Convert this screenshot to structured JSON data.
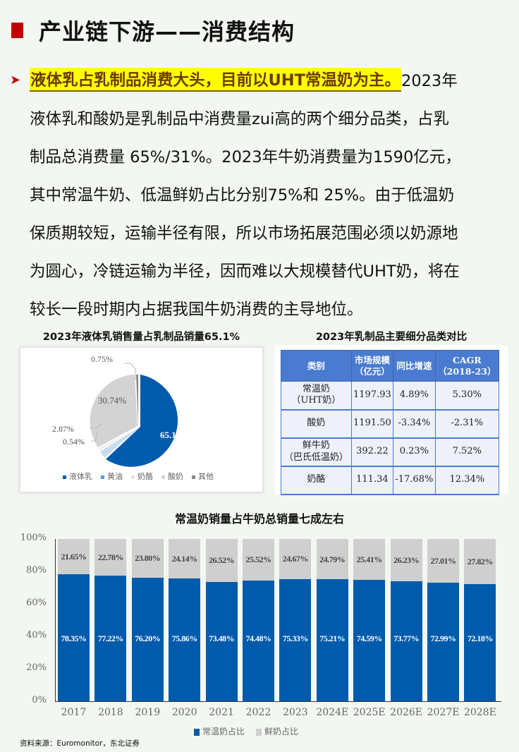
{
  "header": {
    "title": "产业链下游——消费结构",
    "accent_color": "#c00000"
  },
  "paragraph": {
    "highlight": "液体乳占乳制品消费大头，目前以UHT常温奶为主。",
    "lines": [
      "2023年",
      "液体乳和酸奶是乳制品中消费量zui高的两个细分品类，占乳",
      "制品总消费量 65%/31%。2023年牛奶消费量为1590亿元，",
      "其中常温牛奶、低温鲜奶占比分别75%和 25%。由于低温奶",
      "保质期较短，运输半径有限，所以市场拓展范围必须以奶源地",
      "为圆心，冷链运输为半径，因而难以大规模替代UHT奶，将在",
      "较长一段时期内占据我国牛奶消费的主导地位。"
    ]
  },
  "pie": {
    "title": "2023年液体乳销售量占乳制品销量65.1%",
    "labels": {
      "liquid": "65.10%",
      "yogurt": "30.74%",
      "other": "0.75%",
      "butter": "2.87%",
      "cheese": "0.54%"
    },
    "legend": [
      "液体乳",
      "黄油",
      "奶酪",
      "酸奶",
      "其他"
    ]
  },
  "table": {
    "title": "2023年乳制品主要细分品类对比",
    "headers": [
      [
        "类别",
        ""
      ],
      [
        "市场规模",
        "（亿元）"
      ],
      [
        "同比增速",
        ""
      ],
      [
        "CAGR",
        "（2018-23）"
      ]
    ],
    "rows": [
      {
        "cat1": "常温奶",
        "cat2": "（UHT奶）",
        "size": "1197.93",
        "yoy": "4.89%",
        "cagr": "5.30%"
      },
      {
        "cat1": "酸奶",
        "cat2": "",
        "size": "1191.50",
        "yoy": "-3.34%",
        "cagr": "-2.31%"
      },
      {
        "cat1": "鲜牛奶",
        "cat2": "（巴氏低温奶）",
        "size": "392.22",
        "yoy": "0.23%",
        "cagr": "7.52%"
      },
      {
        "cat1": "奶酪",
        "cat2": "",
        "size": "111.34",
        "yoy": "-17.68%",
        "cagr": "12.34%"
      }
    ]
  },
  "bar": {
    "title": "常温奶销量占牛奶总销量七成左右",
    "legend": [
      "常温奶占比",
      "鲜奶占比"
    ],
    "y_ticks": [
      "100%",
      "80%",
      "60%",
      "40%",
      "20%",
      "0%"
    ]
  },
  "chart_data": [
    {
      "type": "pie",
      "title": "2023年液体乳销售量占乳制品销量65.1%",
      "categories": [
        "液体乳",
        "黄油",
        "奶酪",
        "酸奶",
        "其他"
      ],
      "values": [
        65.1,
        2.87,
        0.54,
        30.74,
        0.75
      ],
      "legend_position": "bottom"
    },
    {
      "type": "bar",
      "stacked": true,
      "title": "常温奶销量占牛奶总销量七成左右",
      "categories": [
        "2017",
        "2018",
        "2019",
        "2020",
        "2021",
        "2022",
        "2023",
        "2024E",
        "2025E",
        "2026E",
        "2027E",
        "2028E"
      ],
      "series": [
        {
          "name": "常温奶占比",
          "values": [
            78.35,
            77.22,
            76.2,
            75.86,
            73.48,
            74.48,
            75.33,
            75.21,
            74.59,
            73.77,
            72.99,
            72.18
          ],
          "color": "#005bac"
        },
        {
          "name": "鲜奶占比",
          "values": [
            21.65,
            22.78,
            23.8,
            24.14,
            26.52,
            25.52,
            24.67,
            24.79,
            25.41,
            26.23,
            27.01,
            27.82
          ],
          "color": "#cfcfcf"
        }
      ],
      "ylim": [
        0,
        100
      ],
      "legend_position": "bottom"
    }
  ],
  "source": "资料来源：Euromonitor，东北证券"
}
